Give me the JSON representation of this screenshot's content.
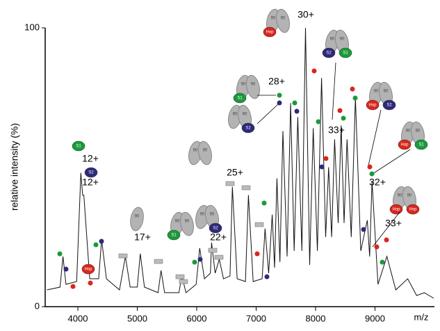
{
  "chart_data": {
    "type": "line",
    "x_label": "m/z",
    "y_label": "relative intensity (%)",
    "x": [
      3480,
      3700,
      3750,
      3800,
      3980,
      4050,
      4080,
      4100,
      4200,
      4350,
      4400,
      4480,
      4700,
      4800,
      4880,
      5000,
      5050,
      5120,
      5350,
      5400,
      5460,
      5700,
      5750,
      5820,
      5990,
      6050,
      6130,
      6230,
      6250,
      6310,
      6380,
      6450,
      6560,
      6600,
      6680,
      6820,
      6870,
      6950,
      7100,
      7150,
      7210,
      7270,
      7310,
      7350,
      7400,
      7450,
      7520,
      7580,
      7640,
      7700,
      7770,
      7830,
      7900,
      7960,
      8030,
      8100,
      8170,
      8220,
      8270,
      8320,
      8380,
      8430,
      8480,
      8530,
      8600,
      8670,
      8760,
      8870,
      8910,
      8950,
      9050,
      9200,
      9350,
      9550,
      9700,
      9830,
      9990
    ],
    "values": [
      6,
      7,
      18,
      8,
      9,
      48,
      40,
      40,
      10,
      10,
      24,
      10,
      6,
      18,
      7,
      7,
      19,
      7,
      5,
      13,
      5,
      5,
      11,
      5,
      8,
      21,
      10,
      12,
      23,
      12,
      17,
      10,
      11,
      43,
      10,
      9,
      40,
      9,
      10,
      28,
      12,
      33,
      14,
      46,
      16,
      63,
      18,
      73,
      20,
      68,
      20,
      100,
      15,
      64,
      20,
      82,
      25,
      50,
      25,
      60,
      30,
      65,
      30,
      60,
      25,
      75,
      20,
      31,
      18,
      45,
      8,
      18,
      6,
      10,
      4,
      5,
      3
    ],
    "color": "#111111",
    "xlim": [
      3450,
      10000
    ],
    "xticks": [
      4000,
      5000,
      6000,
      7000,
      8000,
      9000
    ],
    "ylim": [
      0,
      100
    ],
    "yticks": [
      0,
      100
    ],
    "annotations": [
      "12+",
      "12+",
      "17+",
      "22+",
      "25+",
      "28+",
      "30+",
      "33+",
      "32+",
      "33+"
    ],
    "icon_texts": [
      "90",
      "Hop",
      "S1",
      "S2"
    ]
  }
}
